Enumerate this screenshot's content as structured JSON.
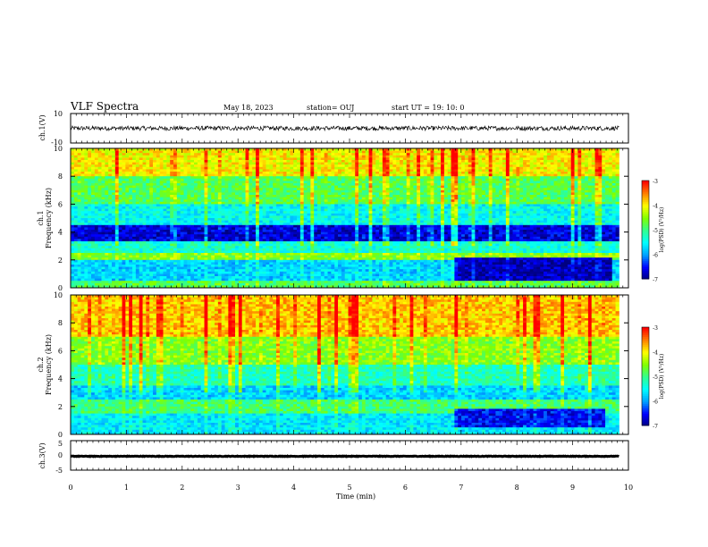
{
  "header": {
    "title": "VLF Spectra",
    "date": "May 18, 2023",
    "station": "station= OUJ",
    "start": "start  UT =   19: 10: 0"
  },
  "chart_data": [
    {
      "type": "line",
      "name": "waveform-ch1",
      "ylabel": "ch.1(V)",
      "ylim": [
        -10,
        10
      ],
      "yticks": [
        "10",
        "-10"
      ],
      "xlim": [
        0,
        10
      ],
      "trace_end_min": 9.83,
      "baseline_v": 0,
      "noise_amplitude_v": 1.5
    },
    {
      "type": "heatmap",
      "name": "spectrogram-ch1",
      "ylabel_top": "ch.1",
      "ylabel": "Frequency (kHz)",
      "ylim": [
        0,
        10
      ],
      "yticks": [
        "0",
        "2",
        "4",
        "6",
        "8",
        "10"
      ],
      "xlim": [
        0,
        10
      ],
      "data_end_min": 9.83,
      "colorbar": {
        "label": "log(PSD) (V²/Hz)",
        "range": [
          -7,
          -3
        ],
        "ticks": [
          "-3",
          "-4",
          "-5",
          "-6",
          "-7"
        ]
      },
      "bands": [
        {
          "f": [
            8.0,
            10.0
          ],
          "level": 0.75
        },
        {
          "f": [
            6.0,
            8.0
          ],
          "level": 0.55
        },
        {
          "f": [
            4.5,
            6.0
          ],
          "level": 0.38
        },
        {
          "f": [
            3.3,
            4.5
          ],
          "level": 0.08
        },
        {
          "f": [
            2.5,
            3.3
          ],
          "level": 0.42
        },
        {
          "f": [
            2.0,
            2.5
          ],
          "level": 0.62
        },
        {
          "f": [
            0.5,
            2.0
          ],
          "level": 0.32
        },
        {
          "f": [
            0.0,
            0.5
          ],
          "level": 0.55
        }
      ],
      "quiet_region": {
        "t": [
          6.9,
          9.7
        ],
        "f": [
          0.5,
          2.2
        ],
        "level": 0.05
      }
    },
    {
      "type": "heatmap",
      "name": "spectrogram-ch2",
      "ylabel_top": "ch.2",
      "ylabel": "Frequency (kHz)",
      "ylim": [
        0,
        10
      ],
      "yticks": [
        "0",
        "2",
        "4",
        "6",
        "8",
        "10"
      ],
      "xlim": [
        0,
        10
      ],
      "data_end_min": 9.83,
      "colorbar": {
        "label": "log(PSD) (V²/Hz)",
        "range": [
          -7,
          -3
        ],
        "ticks": [
          "-3",
          "-4",
          "-5",
          "-6",
          "-7"
        ]
      },
      "bands": [
        {
          "f": [
            7.0,
            10.0
          ],
          "level": 0.8
        },
        {
          "f": [
            5.0,
            7.0
          ],
          "level": 0.62
        },
        {
          "f": [
            3.5,
            5.0
          ],
          "level": 0.45
        },
        {
          "f": [
            2.5,
            3.5
          ],
          "level": 0.32
        },
        {
          "f": [
            1.5,
            2.5
          ],
          "level": 0.52
        },
        {
          "f": [
            0.0,
            1.5
          ],
          "level": 0.35
        }
      ],
      "quiet_region": {
        "t": [
          6.9,
          9.6
        ],
        "f": [
          0.5,
          1.8
        ],
        "level": 0.12
      }
    },
    {
      "type": "line",
      "name": "waveform-ch3",
      "ylabel": "ch.3(V)",
      "ylim": [
        -5,
        5
      ],
      "yticks": [
        "5",
        "0",
        "-5"
      ],
      "xlim": [
        0,
        10
      ],
      "trace_end_min": 9.83,
      "baseline_v": -0.3,
      "noise_amplitude_v": 0.1
    }
  ],
  "x_axis": {
    "label": "Time (min)",
    "ticks": [
      "0",
      "1",
      "2",
      "3",
      "4",
      "5",
      "6",
      "7",
      "8",
      "9",
      "10"
    ]
  },
  "colormap": [
    "#000080",
    "#0000ff",
    "#00a0ff",
    "#00ffff",
    "#30ff90",
    "#80ff00",
    "#ffff00",
    "#ff8000",
    "#ff0000",
    "#ffffff"
  ]
}
